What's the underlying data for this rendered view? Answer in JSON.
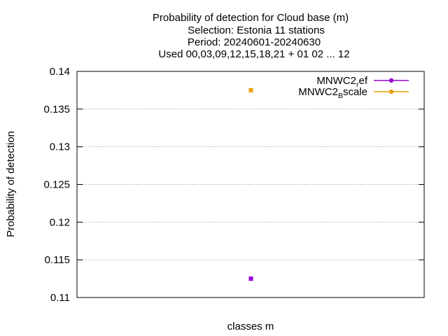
{
  "chart_data": {
    "type": "scatter",
    "title_lines": [
      "Probability of detection  for Cloud base (m)",
      "Selection: Estonia     11 stations",
      "Period: 20240601-20240630",
      "Used 00,03,09,12,15,18,21 + 01 02 ... 12"
    ],
    "xlabel": "classes m",
    "ylabel": "Probability of detection",
    "ylim": [
      0.11,
      0.14
    ],
    "yticks": [
      "0.11",
      "0.115",
      "0.12",
      "0.125",
      "0.13",
      "0.135",
      "0.14"
    ],
    "grid": true,
    "legend_position": "top-right",
    "series": [
      {
        "name_main": "MNWC2",
        "name_sub": "r",
        "name_rest": "ef",
        "color": "#9400d3",
        "values": [
          0.1125
        ]
      },
      {
        "name_main": "MNWC2",
        "name_sub": "B",
        "name_rest": "scale",
        "color": "#e69f00",
        "values": [
          0.1375
        ]
      }
    ]
  }
}
